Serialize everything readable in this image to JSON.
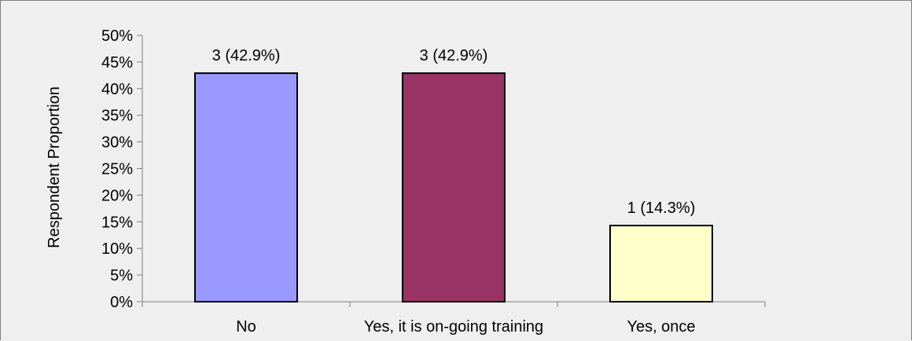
{
  "chart_data": {
    "type": "bar",
    "title": "",
    "xlabel": "",
    "ylabel": "Respondent Proportion",
    "categories": [
      "No",
      "Yes, it is on-going training",
      "Yes, once"
    ],
    "values": [
      42.9,
      42.9,
      14.3
    ],
    "data_labels": [
      "3 (42.9%)",
      "3 (42.9%)",
      "1 (14.3%)"
    ],
    "counts": [
      3,
      3,
      1
    ],
    "bar_colors": [
      "#9999ff",
      "#993366",
      "#ffffcc"
    ],
    "bar_outline_color": "#000000",
    "ylim": [
      0,
      50
    ],
    "ytick_step": 5,
    "ytick_labels": [
      "0%",
      "5%",
      "10%",
      "15%",
      "20%",
      "25%",
      "30%",
      "35%",
      "40%",
      "45%",
      "50%"
    ],
    "y_unit": "%",
    "grid": false,
    "legend": "none",
    "background": "#efefef",
    "border_color": "#7f7f7f"
  }
}
